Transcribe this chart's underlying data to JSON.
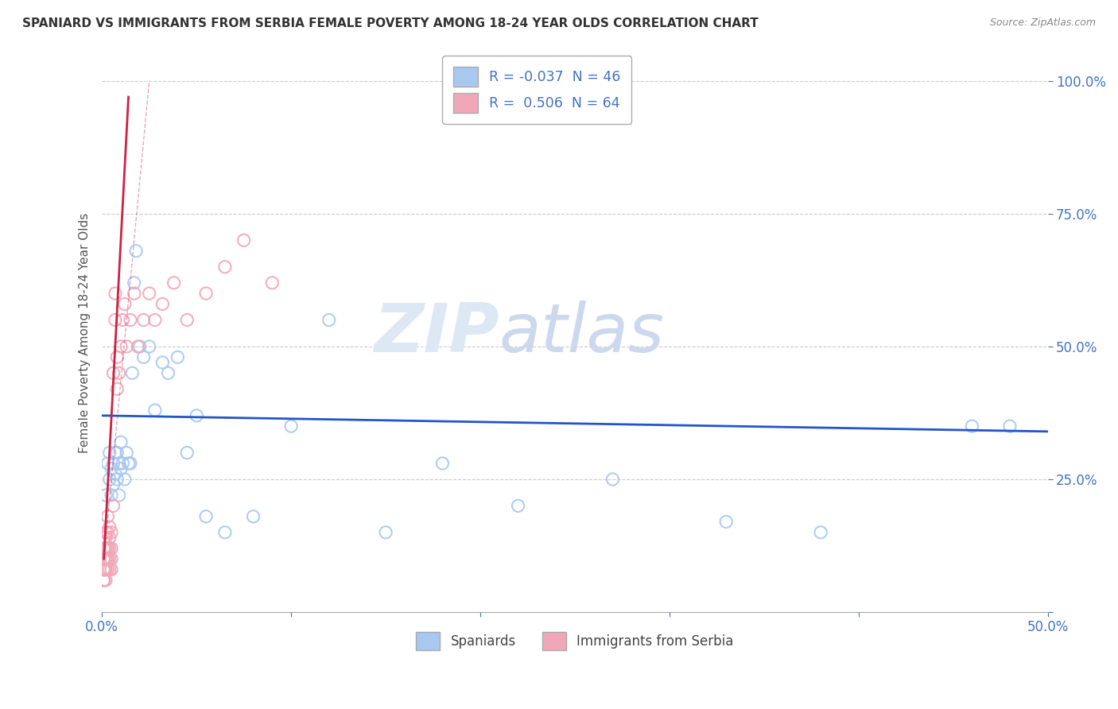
{
  "title": "SPANIARD VS IMMIGRANTS FROM SERBIA FEMALE POVERTY AMONG 18-24 YEAR OLDS CORRELATION CHART",
  "source": "Source: ZipAtlas.com",
  "ylabel": "Female Poverty Among 18-24 Year Olds",
  "legend_entry1": "R = -0.037  N = 46",
  "legend_entry2": "R =  0.506  N = 64",
  "spaniard_color": "#a8c8f0",
  "serbia_color": "#f0a8b8",
  "spaniard_line_color": "#2255cc",
  "serbia_line_color": "#cc2244",
  "watermark_color": "#dde8f5",
  "spaniard_x": [
    0.002,
    0.003,
    0.004,
    0.004,
    0.005,
    0.005,
    0.006,
    0.006,
    0.007,
    0.007,
    0.008,
    0.008,
    0.009,
    0.009,
    0.01,
    0.01,
    0.011,
    0.012,
    0.013,
    0.014,
    0.015,
    0.016,
    0.017,
    0.018,
    0.02,
    0.022,
    0.025,
    0.028,
    0.032,
    0.035,
    0.04,
    0.045,
    0.05,
    0.055,
    0.065,
    0.08,
    0.1,
    0.12,
    0.15,
    0.18,
    0.22,
    0.27,
    0.33,
    0.38,
    0.46,
    0.48
  ],
  "spaniard_y": [
    0.22,
    0.28,
    0.25,
    0.3,
    0.22,
    0.27,
    0.24,
    0.28,
    0.26,
    0.3,
    0.25,
    0.3,
    0.22,
    0.28,
    0.27,
    0.32,
    0.28,
    0.25,
    0.3,
    0.28,
    0.28,
    0.45,
    0.62,
    0.68,
    0.5,
    0.48,
    0.5,
    0.38,
    0.47,
    0.45,
    0.48,
    0.3,
    0.37,
    0.18,
    0.15,
    0.18,
    0.35,
    0.55,
    0.15,
    0.28,
    0.2,
    0.25,
    0.17,
    0.15,
    0.35,
    0.35
  ],
  "serbia_x": [
    0.001,
    0.001,
    0.001,
    0.001,
    0.001,
    0.001,
    0.001,
    0.001,
    0.001,
    0.001,
    0.001,
    0.001,
    0.001,
    0.001,
    0.001,
    0.002,
    0.002,
    0.002,
    0.002,
    0.002,
    0.002,
    0.002,
    0.002,
    0.002,
    0.003,
    0.003,
    0.003,
    0.003,
    0.003,
    0.003,
    0.003,
    0.004,
    0.004,
    0.004,
    0.004,
    0.004,
    0.005,
    0.005,
    0.005,
    0.005,
    0.006,
    0.006,
    0.007,
    0.007,
    0.008,
    0.008,
    0.009,
    0.01,
    0.011,
    0.012,
    0.013,
    0.015,
    0.017,
    0.019,
    0.022,
    0.025,
    0.028,
    0.032,
    0.038,
    0.045,
    0.055,
    0.065,
    0.075,
    0.09
  ],
  "serbia_y": [
    0.08,
    0.1,
    0.12,
    0.08,
    0.06,
    0.1,
    0.08,
    0.06,
    0.1,
    0.12,
    0.08,
    0.1,
    0.14,
    0.06,
    0.08,
    0.12,
    0.08,
    0.1,
    0.15,
    0.08,
    0.12,
    0.1,
    0.06,
    0.14,
    0.12,
    0.1,
    0.15,
    0.08,
    0.12,
    0.18,
    0.1,
    0.14,
    0.12,
    0.1,
    0.08,
    0.16,
    0.12,
    0.1,
    0.15,
    0.08,
    0.2,
    0.45,
    0.55,
    0.6,
    0.42,
    0.48,
    0.45,
    0.5,
    0.55,
    0.58,
    0.5,
    0.55,
    0.6,
    0.5,
    0.55,
    0.6,
    0.55,
    0.58,
    0.62,
    0.55,
    0.6,
    0.65,
    0.7,
    0.62
  ],
  "xlim": [
    0.0,
    0.5
  ],
  "ylim": [
    0.0,
    1.05
  ],
  "background_color": "#ffffff"
}
